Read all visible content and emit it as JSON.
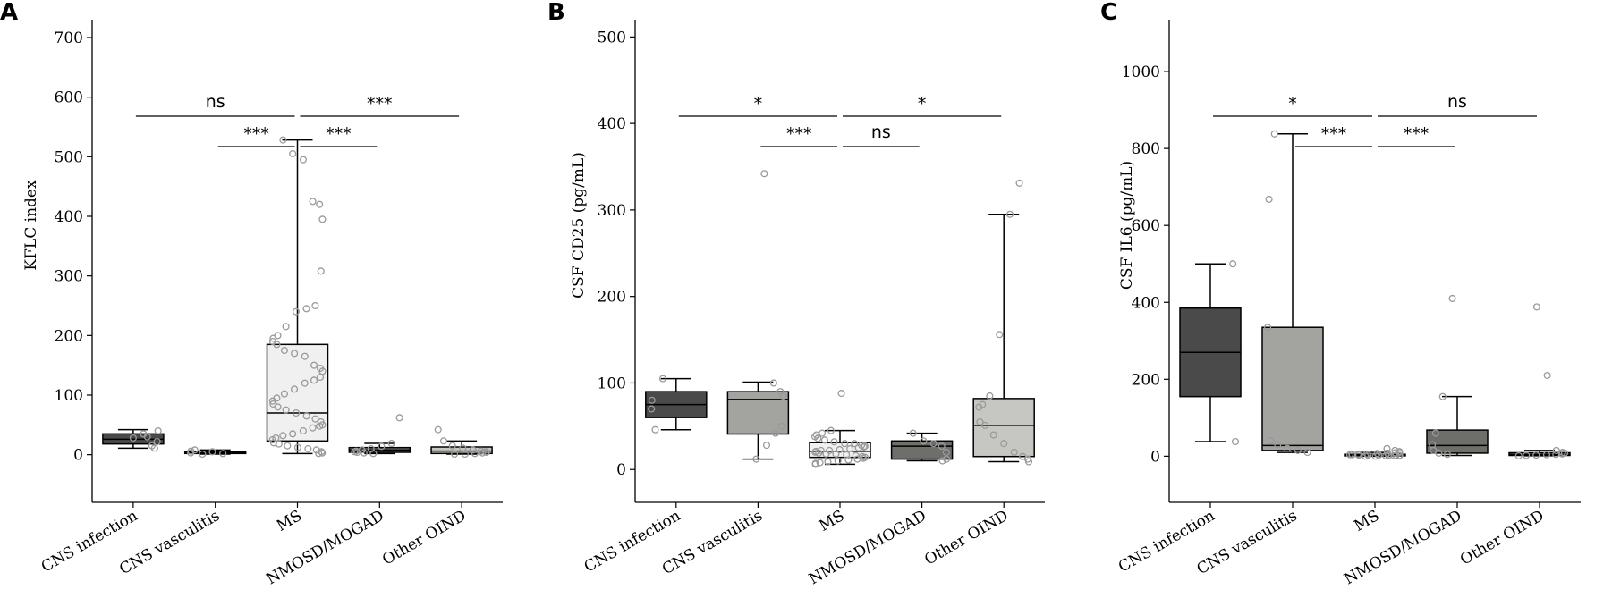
{
  "colors": {
    "axis": "#000000",
    "point": "#9a9a9a",
    "fills": [
      "#4a4a4a",
      "#a3a3a0",
      "#f0f0f0",
      "#6e6e6a",
      "#c6c6c2"
    ]
  },
  "chart_data": [
    {
      "type": "box",
      "panel_label": "A",
      "ylabel": "KFLC index",
      "ylim": [
        -80,
        730
      ],
      "yticks": [
        0,
        100,
        200,
        300,
        400,
        500,
        600,
        700
      ],
      "categories": [
        "CNS infection",
        "CNS vasculitis",
        "MS",
        "NMOSD/MOGAD",
        "Other OIND"
      ],
      "boxes": [
        {
          "whislo": 11,
          "q1": 18,
          "med": 26,
          "q3": 35,
          "whishi": 42
        },
        {
          "whislo": 1,
          "q1": 2,
          "med": 3,
          "q3": 5,
          "whishi": 8
        },
        {
          "whislo": 2,
          "q1": 23,
          "med": 70,
          "q3": 185,
          "whishi": 528
        },
        {
          "whislo": 2,
          "q1": 4,
          "med": 8,
          "q3": 12,
          "whishi": 19
        },
        {
          "whislo": 1,
          "q1": 2,
          "med": 6,
          "q3": 13,
          "whishi": 23
        }
      ],
      "points": [
        [
          28,
          35,
          15,
          22,
          40,
          11,
          30
        ],
        [
          2,
          5,
          1,
          8,
          3,
          6
        ],
        [
          528,
          505,
          495,
          425,
          420,
          395,
          308,
          250,
          245,
          240,
          215,
          200,
          195,
          190,
          185,
          175,
          170,
          165,
          150,
          145,
          140,
          130,
          125,
          120,
          110,
          102,
          95,
          90,
          85,
          80,
          75,
          70,
          65,
          60,
          55,
          50,
          48,
          45,
          40,
          35,
          32,
          28,
          25,
          20,
          18,
          15,
          12,
          10,
          8,
          5,
          3,
          2
        ],
        [
          62,
          19,
          14,
          10,
          8,
          6,
          5,
          4,
          3,
          2
        ],
        [
          42,
          23,
          15,
          11,
          8,
          6,
          5,
          4,
          3,
          2,
          1,
          1
        ]
      ],
      "significance": [
        {
          "from": 0,
          "to": 2,
          "label": "ns",
          "level": 1
        },
        {
          "from": 2,
          "to": 4,
          "label": "***",
          "level": 1
        },
        {
          "from": 1,
          "to": 2,
          "label": "***",
          "level": 0
        },
        {
          "from": 2,
          "to": 3,
          "label": "***",
          "level": 0
        }
      ]
    },
    {
      "type": "box",
      "panel_label": "B",
      "ylabel": "CSF CD25 (pg/mL)",
      "ylim": [
        -38,
        520
      ],
      "yticks": [
        0,
        100,
        200,
        300,
        400,
        500
      ],
      "categories": [
        "CNS infection",
        "CNS vasculitis",
        "MS",
        "NMOSD/MOGAD",
        "Other OIND"
      ],
      "boxes": [
        {
          "whislo": 46,
          "q1": 60,
          "med": 75,
          "q3": 90,
          "whishi": 105
        },
        {
          "whislo": 12,
          "q1": 41,
          "med": 81,
          "q3": 90,
          "whishi": 101
        },
        {
          "whislo": 6,
          "q1": 14,
          "med": 21,
          "q3": 31,
          "whishi": 45
        },
        {
          "whislo": 10,
          "q1": 12,
          "med": 27,
          "q3": 33,
          "whishi": 42
        },
        {
          "whislo": 9,
          "q1": 15,
          "med": 51,
          "q3": 82,
          "whishi": 295
        }
      ],
      "points": [
        [
          105,
          46,
          70,
          80
        ],
        [
          342,
          100,
          90,
          85,
          50,
          42,
          28,
          12
        ],
        [
          88,
          45,
          42,
          40,
          38,
          36,
          34,
          32,
          30,
          30,
          28,
          27,
          26,
          25,
          24,
          23,
          22,
          22,
          21,
          20,
          19,
          18,
          18,
          17,
          16,
          15,
          14,
          13,
          12,
          11,
          10,
          9,
          8,
          7,
          6
        ],
        [
          42,
          33,
          30,
          27,
          20,
          12,
          10
        ],
        [
          331,
          295,
          156,
          85,
          75,
          72,
          55,
          51,
          40,
          30,
          20,
          15,
          12,
          9
        ]
      ],
      "significance": [
        {
          "from": 0,
          "to": 2,
          "label": "*",
          "level": 1
        },
        {
          "from": 2,
          "to": 4,
          "label": "*",
          "level": 1
        },
        {
          "from": 1,
          "to": 2,
          "label": "***",
          "level": 0
        },
        {
          "from": 2,
          "to": 3,
          "label": "ns",
          "level": 0
        }
      ]
    },
    {
      "type": "box",
      "panel_label": "C",
      "ylabel": "CSF IL6 (pg/mL)",
      "ylim": [
        -120,
        1135
      ],
      "yticks": [
        0,
        200,
        400,
        600,
        800,
        1000
      ],
      "categories": [
        "CNS infection",
        "CNS vasculitis",
        "MS",
        "NMOSD/MOGAD",
        "Other OIND"
      ],
      "boxes": [
        {
          "whislo": 38,
          "q1": 155,
          "med": 270,
          "q3": 385,
          "whishi": 500
        },
        {
          "whislo": 10,
          "q1": 15,
          "med": 28,
          "q3": 335,
          "whishi": 838
        },
        {
          "whislo": 0,
          "q1": 1,
          "med": 3,
          "q3": 5,
          "whishi": 10
        },
        {
          "whislo": 2,
          "q1": 8,
          "med": 28,
          "q3": 68,
          "whishi": 155
        },
        {
          "whislo": 1,
          "q1": 2,
          "med": 5,
          "q3": 9,
          "whishi": 15
        }
      ],
      "points": [
        [
          500,
          38
        ],
        [
          838,
          668,
          335,
          40,
          30,
          20,
          15,
          10
        ],
        [
          20,
          15,
          12,
          10,
          9,
          8,
          7,
          6,
          5,
          5,
          4,
          4,
          3,
          3,
          3,
          2,
          2,
          2,
          1,
          1,
          1,
          0,
          0
        ],
        [
          410,
          155,
          60,
          30,
          15,
          8,
          5
        ],
        [
          388,
          210,
          15,
          10,
          8,
          6,
          5,
          4,
          3,
          2,
          1
        ]
      ],
      "significance": [
        {
          "from": 0,
          "to": 2,
          "label": "*",
          "level": 1
        },
        {
          "from": 2,
          "to": 4,
          "label": "ns",
          "level": 1
        },
        {
          "from": 1,
          "to": 2,
          "label": "***",
          "level": 0
        },
        {
          "from": 2,
          "to": 3,
          "label": "***",
          "level": 0
        }
      ]
    }
  ]
}
